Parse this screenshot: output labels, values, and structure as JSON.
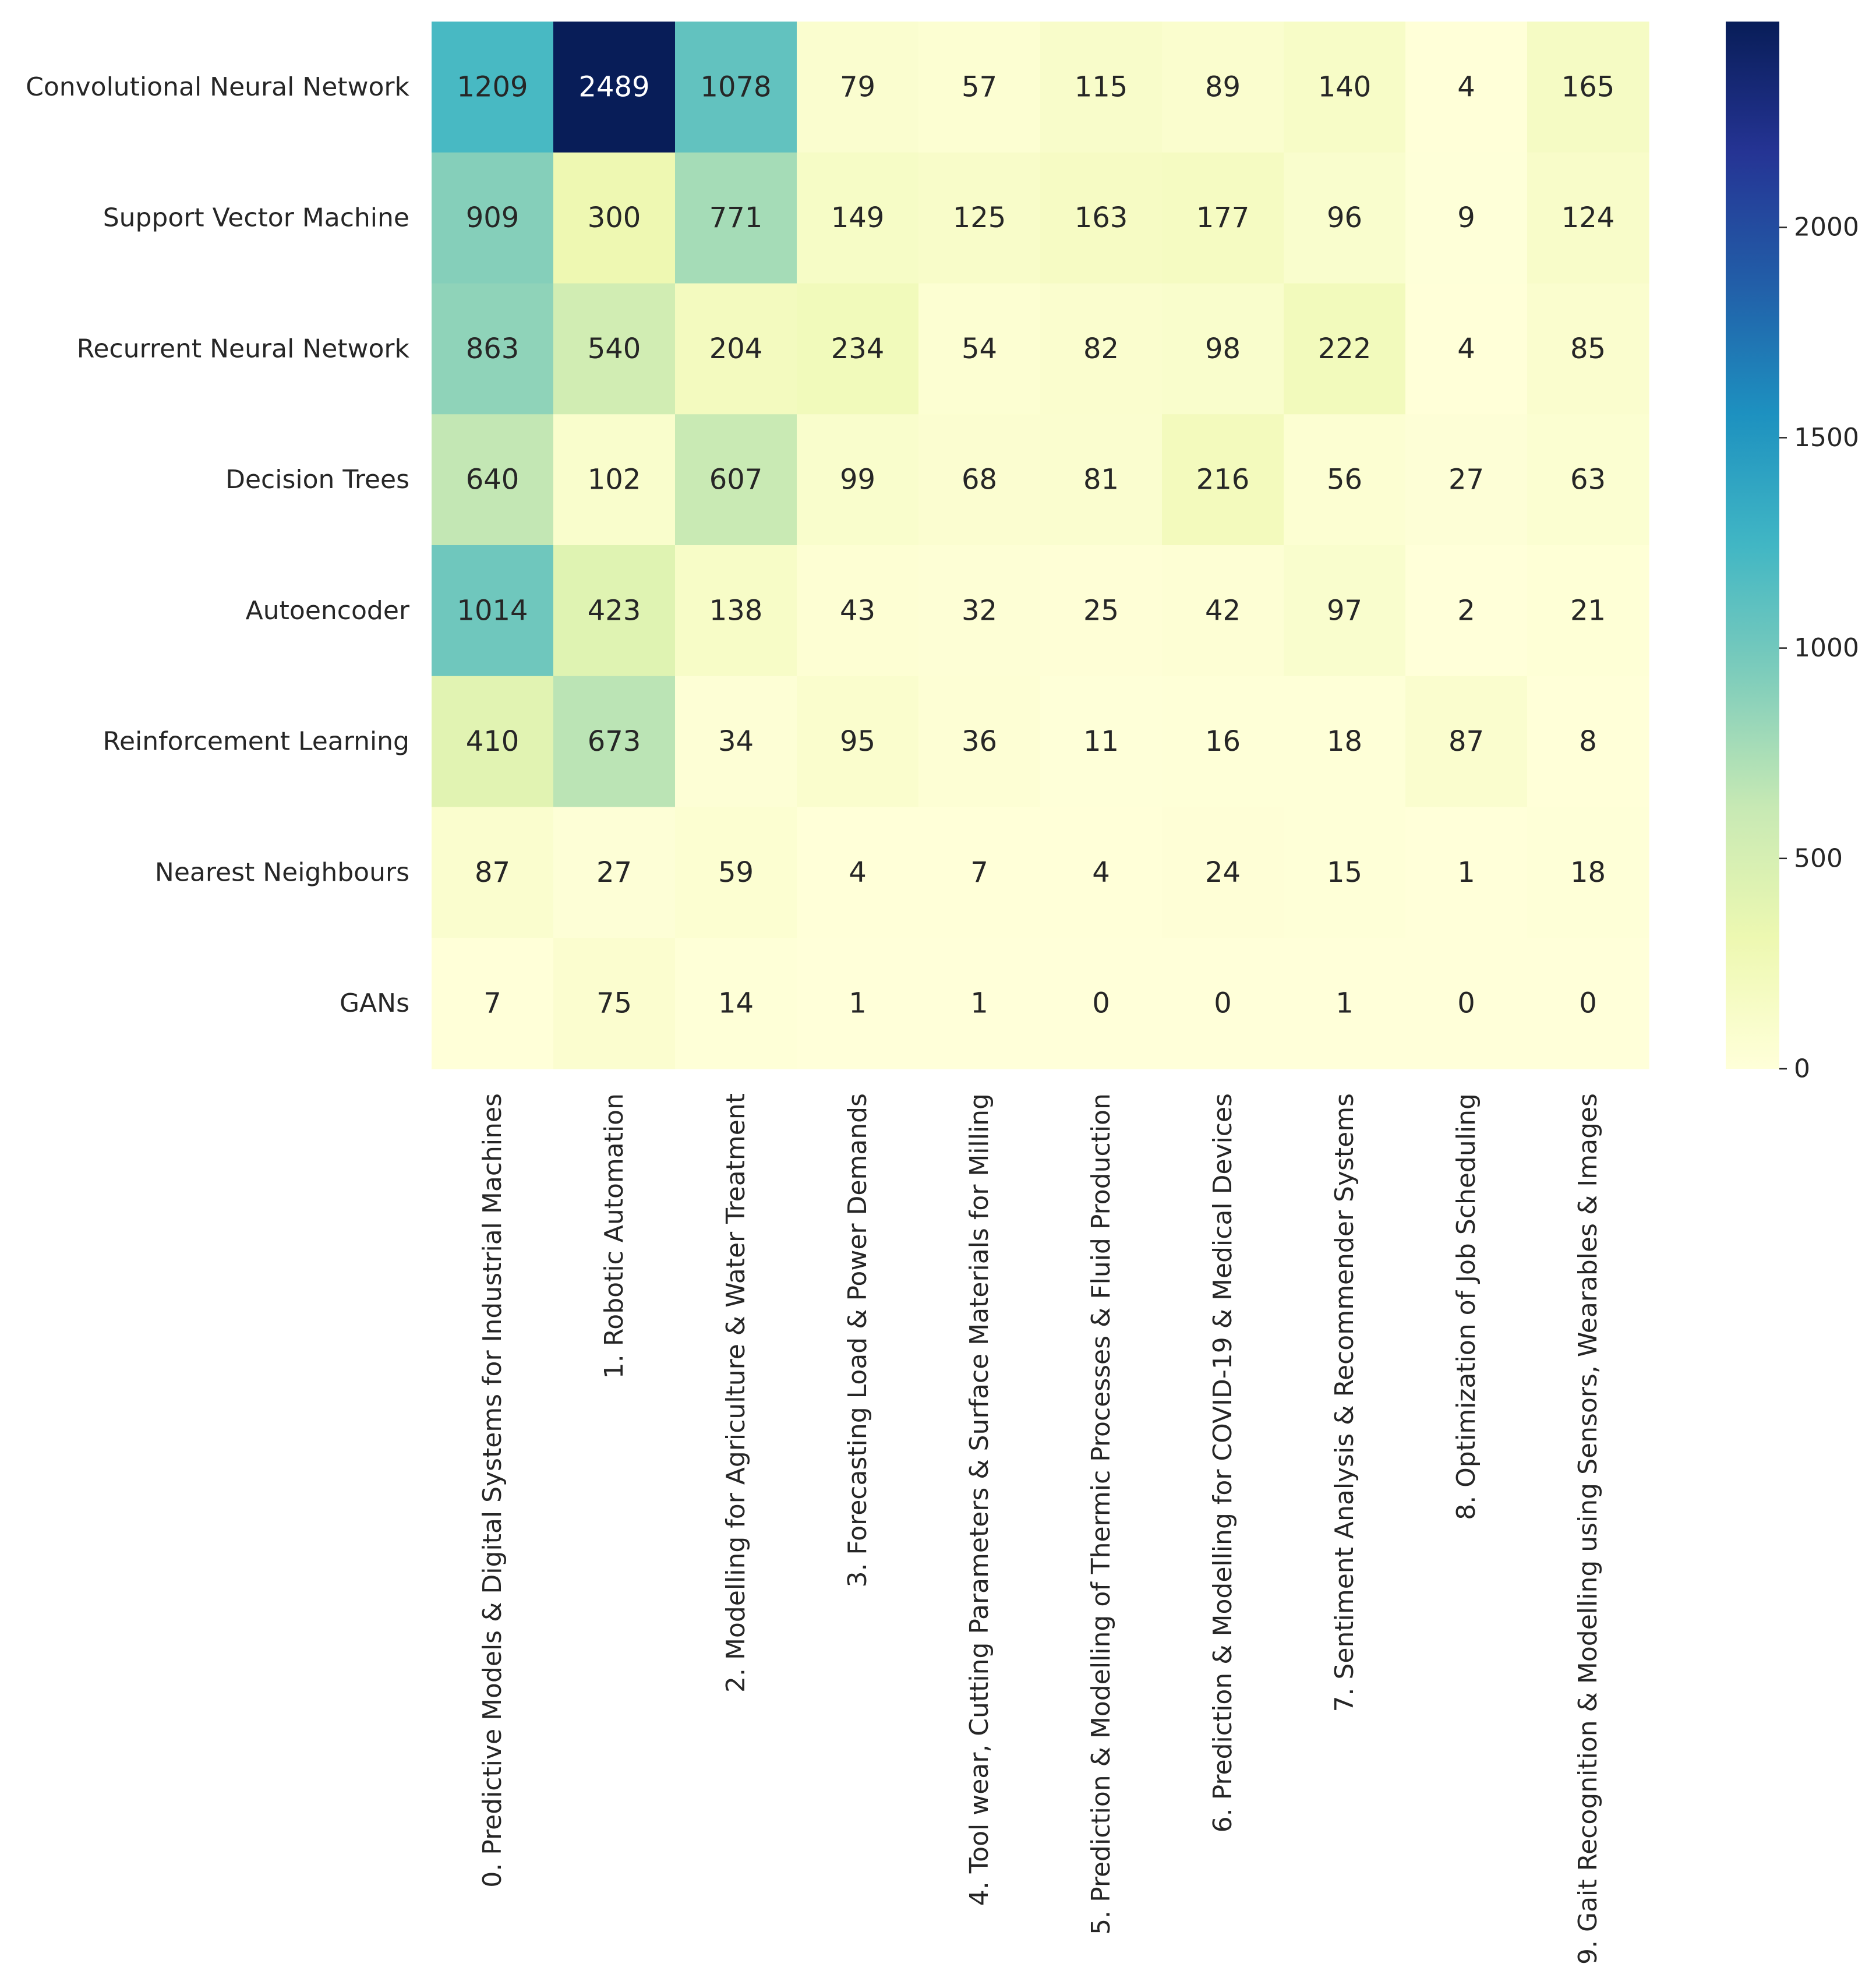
{
  "chart_data": {
    "type": "heatmap",
    "title": "",
    "xlabel": "",
    "ylabel": "",
    "rows": [
      "Convolutional Neural Network",
      "Support Vector Machine",
      "Recurrent Neural Network",
      "Decision Trees",
      "Autoencoder",
      "Reinforcement Learning",
      "Nearest Neighbours",
      "GANs"
    ],
    "columns": [
      "0. Predictive Models & Digital Systems for Industrial Machines",
      "1. Robotic Automation",
      "2. Modelling for Agriculture & Water Treatment",
      "3. Forecasting Load & Power Demands",
      "4. Tool wear, Cutting Parameters & Surface Materials for Milling",
      "5. Prediction & Modelling of Thermic Processes & Fluid Production",
      "6. Prediction & Modelling for COVID-19 & Medical Devices",
      "7. Sentiment Analysis & Recommender Systems",
      "8. Optimization of Job Scheduling",
      "9. Gait Recognition & Modelling using Sensors, Wearables & Images"
    ],
    "values": [
      [
        1209,
        2489,
        1078,
        79,
        57,
        115,
        89,
        140,
        4,
        165
      ],
      [
        909,
        300,
        771,
        149,
        125,
        163,
        177,
        96,
        9,
        124
      ],
      [
        863,
        540,
        204,
        234,
        54,
        82,
        98,
        222,
        4,
        85
      ],
      [
        640,
        102,
        607,
        99,
        68,
        81,
        216,
        56,
        27,
        63
      ],
      [
        1014,
        423,
        138,
        43,
        32,
        25,
        42,
        97,
        2,
        21
      ],
      [
        410,
        673,
        34,
        95,
        36,
        11,
        16,
        18,
        87,
        8
      ],
      [
        87,
        27,
        59,
        4,
        7,
        4,
        24,
        15,
        1,
        18
      ],
      [
        7,
        75,
        14,
        1,
        1,
        0,
        0,
        1,
        0,
        0
      ]
    ],
    "colorbar": {
      "colormap": "YlGnBu",
      "vmin": 0,
      "vmax": 2489,
      "ticks": [
        0,
        500,
        1000,
        1500,
        2000
      ],
      "tick_labels": [
        "0",
        "500",
        "1000",
        "1500",
        "2000"
      ]
    },
    "annotations": true
  }
}
